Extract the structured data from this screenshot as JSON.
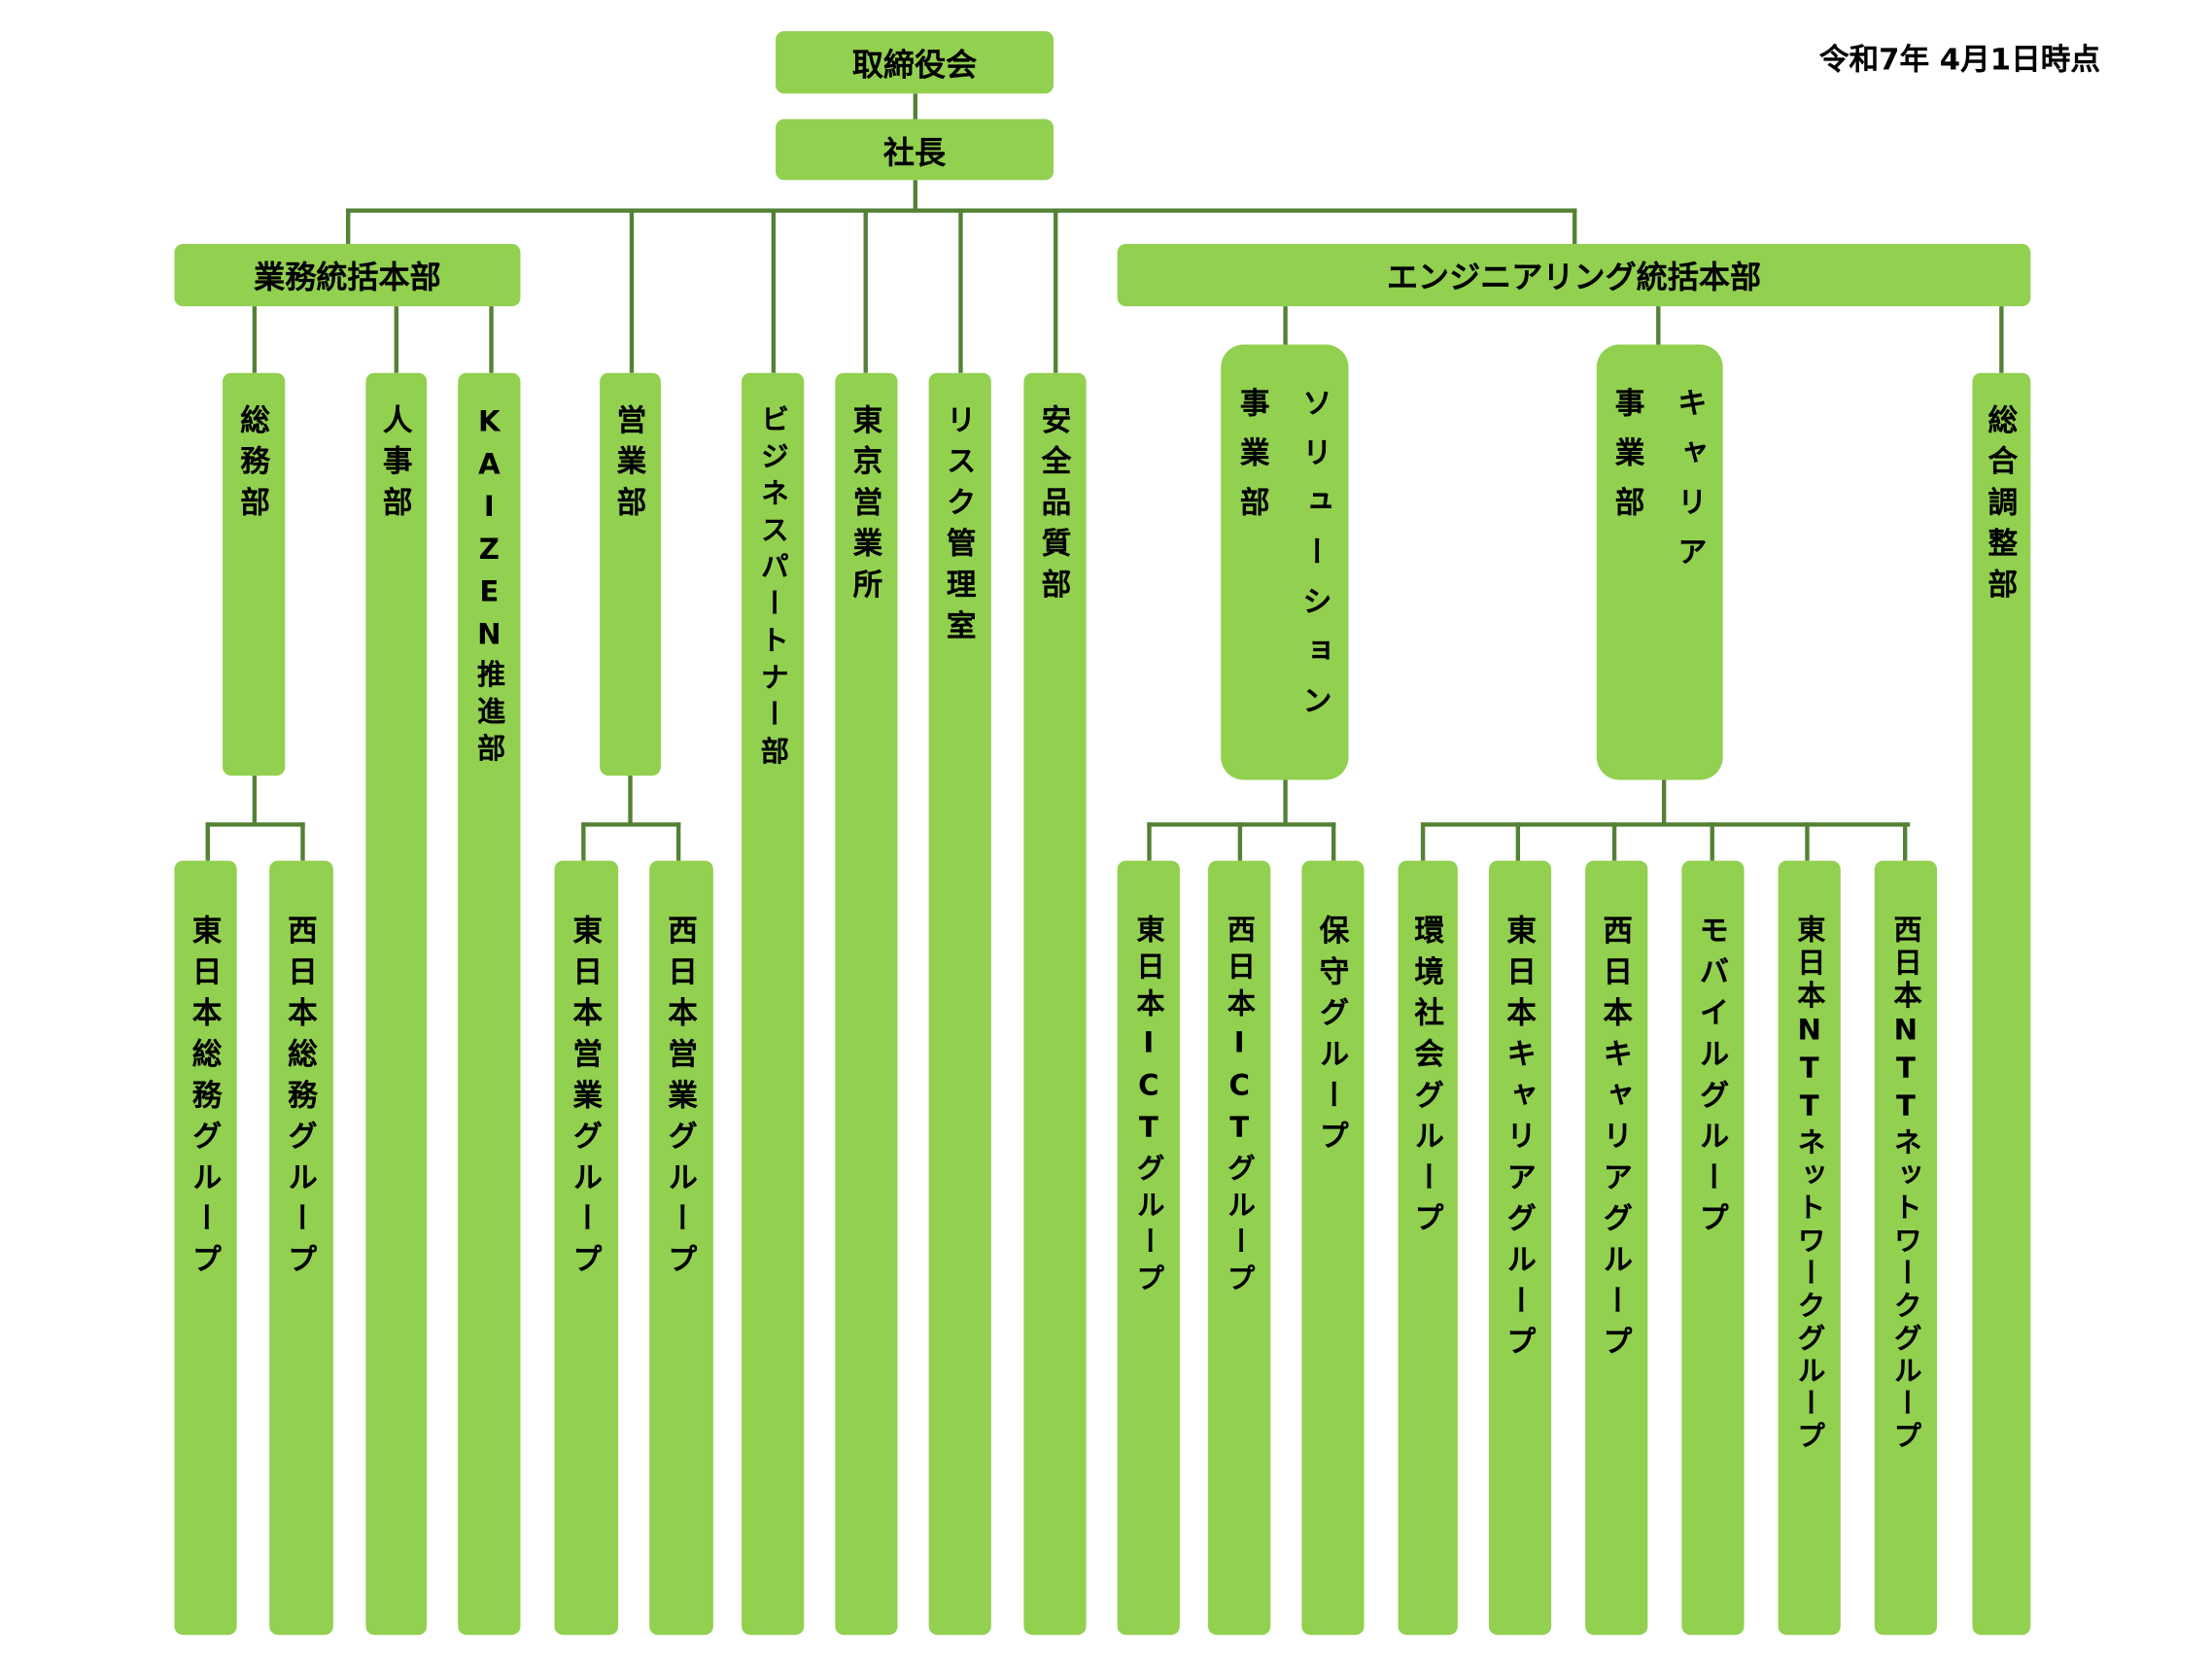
{
  "date": "令和7年 4月1日時点",
  "colors": {
    "box": "#92d050",
    "line": "#538135"
  },
  "board": "取締役会",
  "president": "社長",
  "business_hq": {
    "label": "業務統括本部",
    "depts": [
      {
        "label": "総務部",
        "groups": [
          "東日本総務グループ",
          "西日本総務グループ"
        ]
      },
      {
        "label": "人事部"
      },
      {
        "label": "KAIZEN推進部"
      }
    ]
  },
  "direct_depts": [
    {
      "label": "営業部",
      "groups": [
        "東日本営業グループ",
        "西日本営業グループ"
      ]
    },
    {
      "label": "ビジネスパートナー部"
    },
    {
      "label": "東京営業所"
    },
    {
      "label": "リスク管理室"
    },
    {
      "label": "安全品質部"
    }
  ],
  "engineering_hq": {
    "label": "エンジニアリング統括本部",
    "depts": [
      {
        "label": "ソリューション\n事業部",
        "groups": [
          "東日本ICTグループ",
          "西日本ICTグループ",
          "保守グループ"
        ]
      },
      {
        "label": "キャリア\n事業部",
        "groups": [
          "環境社会グループ",
          "東日本キャリアグループ",
          "西日本キャリアグループ",
          "モバイルグループ",
          "東日本NTTネットワークグループ",
          "西日本NTTネットワークグループ"
        ]
      },
      {
        "label": "総合調整部"
      }
    ]
  }
}
